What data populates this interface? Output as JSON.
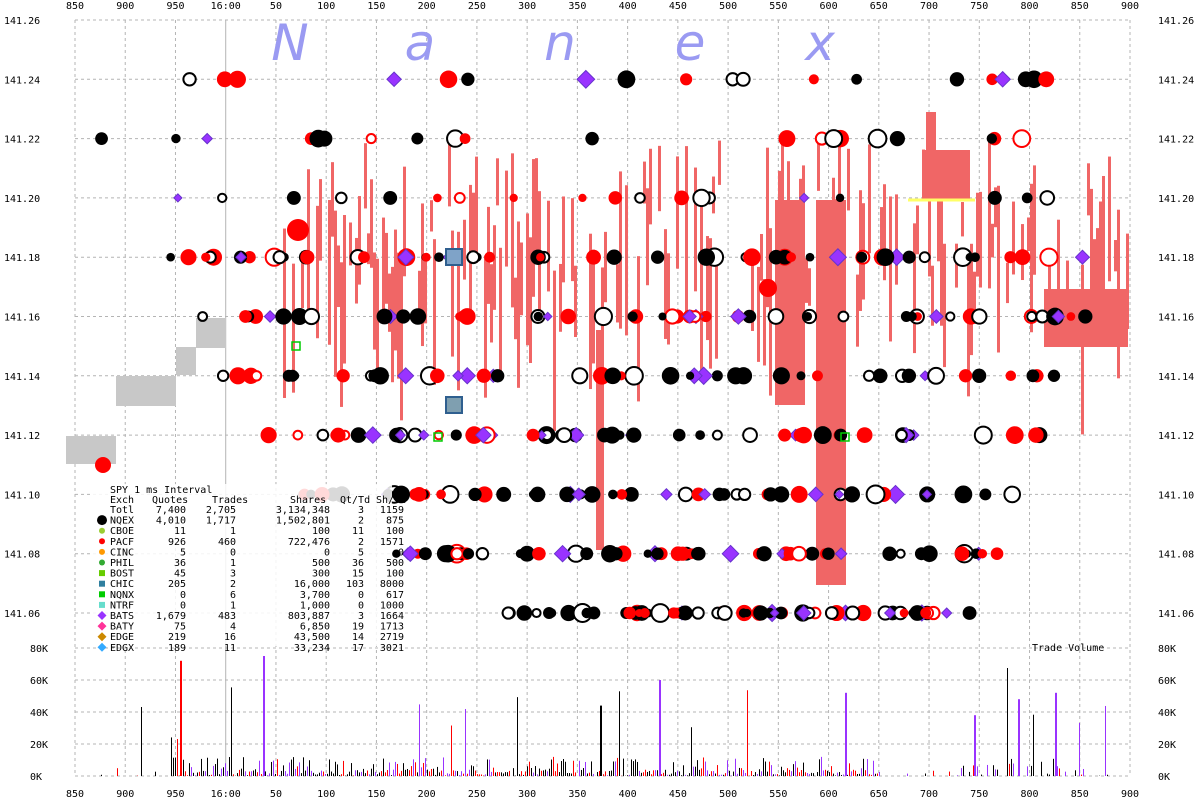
{
  "chart_data": {
    "type": "scatter",
    "brand_letters": [
      "N",
      "a",
      "n",
      "e",
      "x"
    ],
    "x_ticks": [
      "850",
      "900",
      "950",
      "16:00",
      "50",
      "100",
      "150",
      "200",
      "250",
      "300",
      "350",
      "400",
      "450",
      "500",
      "550",
      "600",
      "650",
      "700",
      "750",
      "800",
      "850",
      "900"
    ],
    "y_price_ticks": [
      "141.26",
      "141.24",
      "141.22",
      "141.20",
      "141.18",
      "141.16",
      "141.14",
      "141.12",
      "141.10",
      "141.08",
      "141.06"
    ],
    "y_price_values": [
      141.26,
      141.24,
      141.22,
      141.2,
      141.18,
      141.16,
      141.14,
      141.12,
      141.1,
      141.08,
      141.06
    ],
    "y_volume_ticks": [
      "80K",
      "60K",
      "40K",
      "20K",
      "0K"
    ],
    "volume_label": "Trade Volume",
    "legend": {
      "title": "SPY 1 ms Interval",
      "header": [
        "Exch",
        "Quotes",
        "Trades",
        "Shares",
        "Qt/Td",
        "Sh/Td"
      ],
      "rows": [
        {
          "exch": "Totl",
          "quotes": "7,400",
          "trades": "2,705",
          "shares": "3,134,348",
          "qttd": "3",
          "shtd": "1159",
          "color": "",
          "shape": "none"
        },
        {
          "exch": "NQEX",
          "quotes": "4,010",
          "trades": "1,717",
          "shares": "1,502,801",
          "qttd": "2",
          "shtd": "875",
          "color": "#000000",
          "shape": "circle-big"
        },
        {
          "exch": "CBOE",
          "quotes": "11",
          "trades": "1",
          "shares": "100",
          "qttd": "11",
          "shtd": "100",
          "color": "#9acd32",
          "shape": "circle"
        },
        {
          "exch": "PACF",
          "quotes": "926",
          "trades": "460",
          "shares": "722,476",
          "qttd": "2",
          "shtd": "1571",
          "color": "#ff0000",
          "shape": "circle"
        },
        {
          "exch": "CINC",
          "quotes": "5",
          "trades": "0",
          "shares": "0",
          "qttd": "5",
          "shtd": "0",
          "color": "#ff9900",
          "shape": "circle"
        },
        {
          "exch": "PHIL",
          "quotes": "36",
          "trades": "1",
          "shares": "500",
          "qttd": "36",
          "shtd": "500",
          "color": "#33aa33",
          "shape": "circle"
        },
        {
          "exch": "BOST",
          "quotes": "45",
          "trades": "3",
          "shares": "300",
          "qttd": "15",
          "shtd": "100",
          "color": "#66cc00",
          "shape": "square"
        },
        {
          "exch": "CHIC",
          "quotes": "205",
          "trades": "2",
          "shares": "16,000",
          "qttd": "103",
          "shtd": "8000",
          "color": "#2f7f9f",
          "shape": "square"
        },
        {
          "exch": "NQNX",
          "quotes": "0",
          "trades": "6",
          "shares": "3,700",
          "qttd": "0",
          "shtd": "617",
          "color": "#00cc00",
          "shape": "square"
        },
        {
          "exch": "NTRF",
          "quotes": "0",
          "trades": "1",
          "shares": "1,000",
          "qttd": "0",
          "shtd": "1000",
          "color": "#66ddcc",
          "shape": "square"
        },
        {
          "exch": "BATS",
          "quotes": "1,679",
          "trades": "483",
          "shares": "803,887",
          "qttd": "3",
          "shtd": "1664",
          "color": "#9933ff",
          "shape": "diamond"
        },
        {
          "exch": "BATY",
          "quotes": "75",
          "trades": "4",
          "shares": "6,850",
          "qttd": "19",
          "shtd": "1713",
          "color": "#ff3399",
          "shape": "diamond"
        },
        {
          "exch": "EDGE",
          "quotes": "219",
          "trades": "16",
          "shares": "43,500",
          "qttd": "14",
          "shtd": "2719",
          "color": "#cc8800",
          "shape": "diamond"
        },
        {
          "exch": "EDGX",
          "quotes": "189",
          "trades": "11",
          "shares": "33,234",
          "qttd": "17",
          "shtd": "3021",
          "color": "#33aaff",
          "shape": "diamond"
        }
      ]
    },
    "colors": {
      "nbbo_fill": "#f06666",
      "locked_fill": "#c8c8c8",
      "bid_line": "#ffff66",
      "grid": "#b4b4b4"
    }
  }
}
